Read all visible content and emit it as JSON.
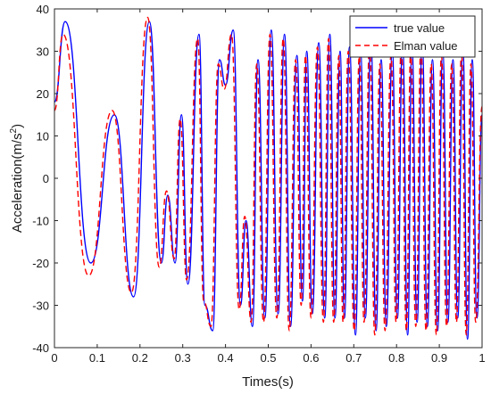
{
  "chart_data": {
    "type": "line",
    "xlabel": "Times(s)",
    "ylabel_main": "Acceleration(m/s",
    "ylabel_sup": "2",
    "ylabel_close": ")",
    "xlim": [
      0,
      1
    ],
    "ylim": [
      -40,
      40
    ],
    "xticks": [
      0,
      0.1,
      0.2,
      0.3,
      0.4,
      0.5,
      0.6,
      0.7,
      0.8,
      0.9,
      1
    ],
    "xtick_labels": [
      "0",
      "0.1",
      "0.2",
      "0.3",
      "0.4",
      "0.5",
      "0.6",
      "0.7",
      "0.8",
      "0.9",
      "1"
    ],
    "yticks": [
      -40,
      -30,
      -20,
      -10,
      0,
      10,
      20,
      30,
      40
    ],
    "ytick_labels": [
      "-40",
      "-30",
      "-20",
      "-10",
      "0",
      "10",
      "20",
      "30",
      "40"
    ],
    "legend_position": "top-right",
    "grid": false,
    "series": [
      {
        "name": "true value",
        "color": "#0000ff",
        "dash": "solid",
        "x": [
          0.0,
          0.025,
          0.085,
          0.14,
          0.185,
          0.222,
          0.25,
          0.265,
          0.282,
          0.297,
          0.312,
          0.338,
          0.352,
          0.37,
          0.386,
          0.4,
          0.418,
          0.435,
          0.448,
          0.463,
          0.476,
          0.492,
          0.507,
          0.523,
          0.538,
          0.552,
          0.567,
          0.58,
          0.59,
          0.603,
          0.618,
          0.632,
          0.644,
          0.656,
          0.668,
          0.678,
          0.69,
          0.704,
          0.716,
          0.727,
          0.74,
          0.752,
          0.764,
          0.776,
          0.79,
          0.802,
          0.814,
          0.826,
          0.836,
          0.848,
          0.86,
          0.872,
          0.884,
          0.896,
          0.908,
          0.92,
          0.932,
          0.943,
          0.955,
          0.966,
          0.977,
          0.988,
          1.0
        ],
        "y": [
          18,
          37,
          -20,
          15,
          -28,
          37,
          -20,
          -4,
          -20,
          15,
          -25,
          34,
          -30,
          -36,
          28,
          22,
          35,
          -30,
          -10,
          -35,
          28,
          -33,
          35,
          -32,
          34,
          -35,
          29,
          -29,
          30,
          -32,
          32,
          -33,
          34,
          -33,
          30,
          -33,
          31,
          -37,
          30,
          -33,
          33,
          -36,
          28,
          -35,
          30,
          -33,
          32,
          -37,
          31,
          -34,
          32,
          -35,
          28,
          -36,
          30,
          -34,
          28,
          -33,
          31,
          -38,
          28,
          -33,
          15
        ]
      },
      {
        "name": "Elman value",
        "color": "#ff0000",
        "dash": "dashed",
        "x": [
          0.0,
          0.02,
          0.08,
          0.135,
          0.18,
          0.218,
          0.245,
          0.262,
          0.28,
          0.294,
          0.309,
          0.335,
          0.349,
          0.366,
          0.383,
          0.397,
          0.414,
          0.432,
          0.445,
          0.46,
          0.473,
          0.489,
          0.504,
          0.52,
          0.535,
          0.549,
          0.564,
          0.577,
          0.587,
          0.6,
          0.615,
          0.629,
          0.641,
          0.653,
          0.665,
          0.675,
          0.687,
          0.701,
          0.713,
          0.724,
          0.737,
          0.749,
          0.761,
          0.773,
          0.787,
          0.799,
          0.811,
          0.823,
          0.833,
          0.845,
          0.857,
          0.869,
          0.881,
          0.893,
          0.905,
          0.917,
          0.929,
          0.94,
          0.952,
          0.963,
          0.974,
          0.985,
          1.0
        ],
        "y": [
          16,
          34,
          -23,
          16,
          -27,
          38,
          -21,
          -3,
          -19,
          14,
          -24,
          33,
          -29,
          -35,
          27,
          21,
          34,
          -31,
          -9,
          -34,
          27,
          -34,
          34,
          -33,
          33,
          -36,
          28,
          -30,
          29,
          -33,
          31,
          -34,
          33,
          -34,
          29,
          -34,
          30,
          -36,
          29,
          -34,
          32,
          -37,
          27,
          -36,
          29,
          -34,
          31,
          -36,
          30,
          -35,
          31,
          -36,
          27,
          -37,
          29,
          -35,
          27,
          -34,
          30,
          -37,
          27,
          -34,
          17
        ]
      }
    ]
  }
}
